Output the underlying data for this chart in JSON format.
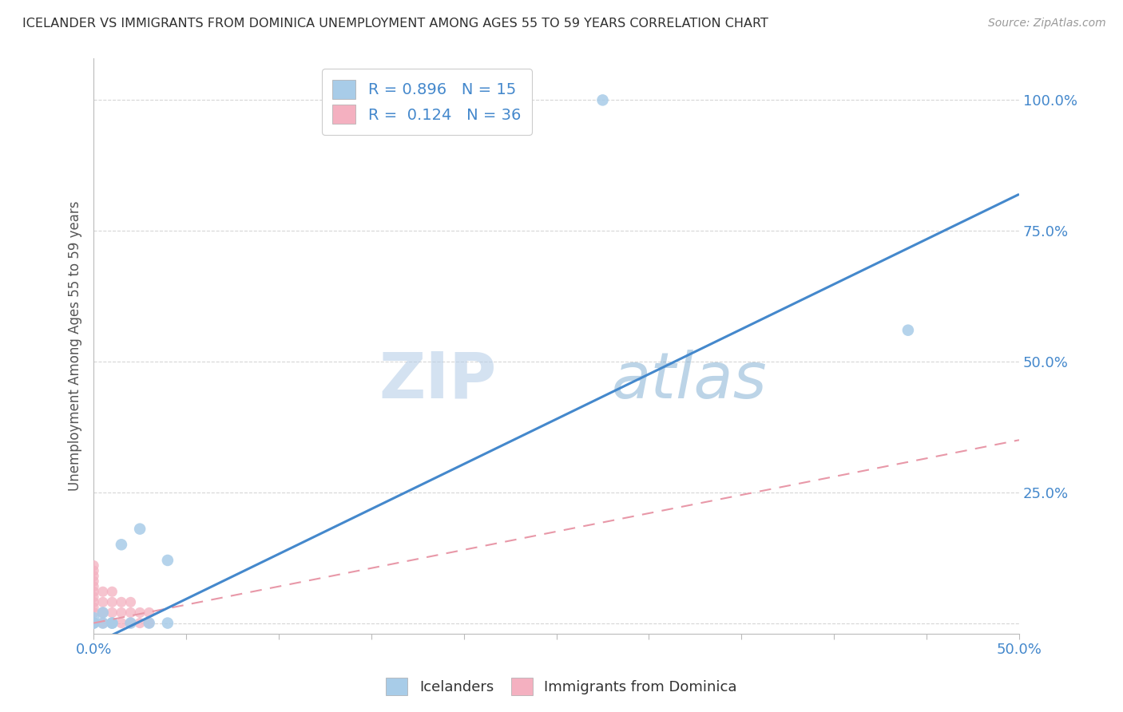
{
  "title": "ICELANDER VS IMMIGRANTS FROM DOMINICA UNEMPLOYMENT AMONG AGES 55 TO 59 YEARS CORRELATION CHART",
  "source": "Source: ZipAtlas.com",
  "ylabel_label": "Unemployment Among Ages 55 to 59 years",
  "xlim": [
    0.0,
    0.5
  ],
  "ylim": [
    -0.02,
    1.08
  ],
  "yticks": [
    0.0,
    0.25,
    0.5,
    0.75,
    1.0
  ],
  "ytick_labels": [
    "",
    "25.0%",
    "50.0%",
    "75.0%",
    "100.0%"
  ],
  "xticks": [
    0.0,
    0.05,
    0.1,
    0.15,
    0.2,
    0.25,
    0.3,
    0.35,
    0.4,
    0.45,
    0.5
  ],
  "blue_R": 0.896,
  "blue_N": 15,
  "pink_R": 0.124,
  "pink_N": 36,
  "blue_color": "#a8cce8",
  "pink_color": "#f4b0c0",
  "blue_line_color": "#4488cc",
  "pink_line_color": "#e898a8",
  "legend_label_blue": "Icelanders",
  "legend_label_pink": "Immigrants from Dominica",
  "watermark_zip": "ZIP",
  "watermark_atlas": "atlas",
  "background_color": "#ffffff",
  "grid_color": "#cccccc",
  "blue_scatter_x": [
    0.0,
    0.0,
    0.0,
    0.005,
    0.005,
    0.01,
    0.01,
    0.015,
    0.02,
    0.025,
    0.03,
    0.04,
    0.04,
    0.275,
    0.44
  ],
  "blue_scatter_y": [
    0.0,
    0.01,
    0.0,
    0.0,
    0.02,
    0.0,
    0.0,
    0.15,
    0.0,
    0.18,
    0.0,
    0.12,
    0.0,
    1.0,
    0.56
  ],
  "pink_scatter_x": [
    0.0,
    0.0,
    0.0,
    0.0,
    0.0,
    0.0,
    0.0,
    0.0,
    0.0,
    0.0,
    0.0,
    0.0,
    0.0,
    0.0,
    0.0,
    0.0,
    0.0,
    0.0,
    0.005,
    0.005,
    0.005,
    0.005,
    0.01,
    0.01,
    0.01,
    0.01,
    0.015,
    0.015,
    0.015,
    0.02,
    0.02,
    0.02,
    0.025,
    0.025,
    0.03,
    0.03
  ],
  "pink_scatter_y": [
    0.0,
    0.0,
    0.0,
    0.0,
    0.0,
    0.0,
    0.02,
    0.03,
    0.04,
    0.05,
    0.06,
    0.07,
    0.08,
    0.09,
    0.1,
    0.11,
    0.0,
    0.0,
    0.0,
    0.02,
    0.04,
    0.06,
    0.0,
    0.02,
    0.04,
    0.06,
    0.0,
    0.02,
    0.04,
    0.0,
    0.02,
    0.04,
    0.0,
    0.02,
    0.0,
    0.02
  ],
  "blue_line_x0": 0.0,
  "blue_line_y0": -0.04,
  "blue_line_x1": 0.5,
  "blue_line_y1": 0.82,
  "pink_line_x0": 0.0,
  "pink_line_y0": 0.0,
  "pink_line_x1": 0.5,
  "pink_line_y1": 0.35
}
